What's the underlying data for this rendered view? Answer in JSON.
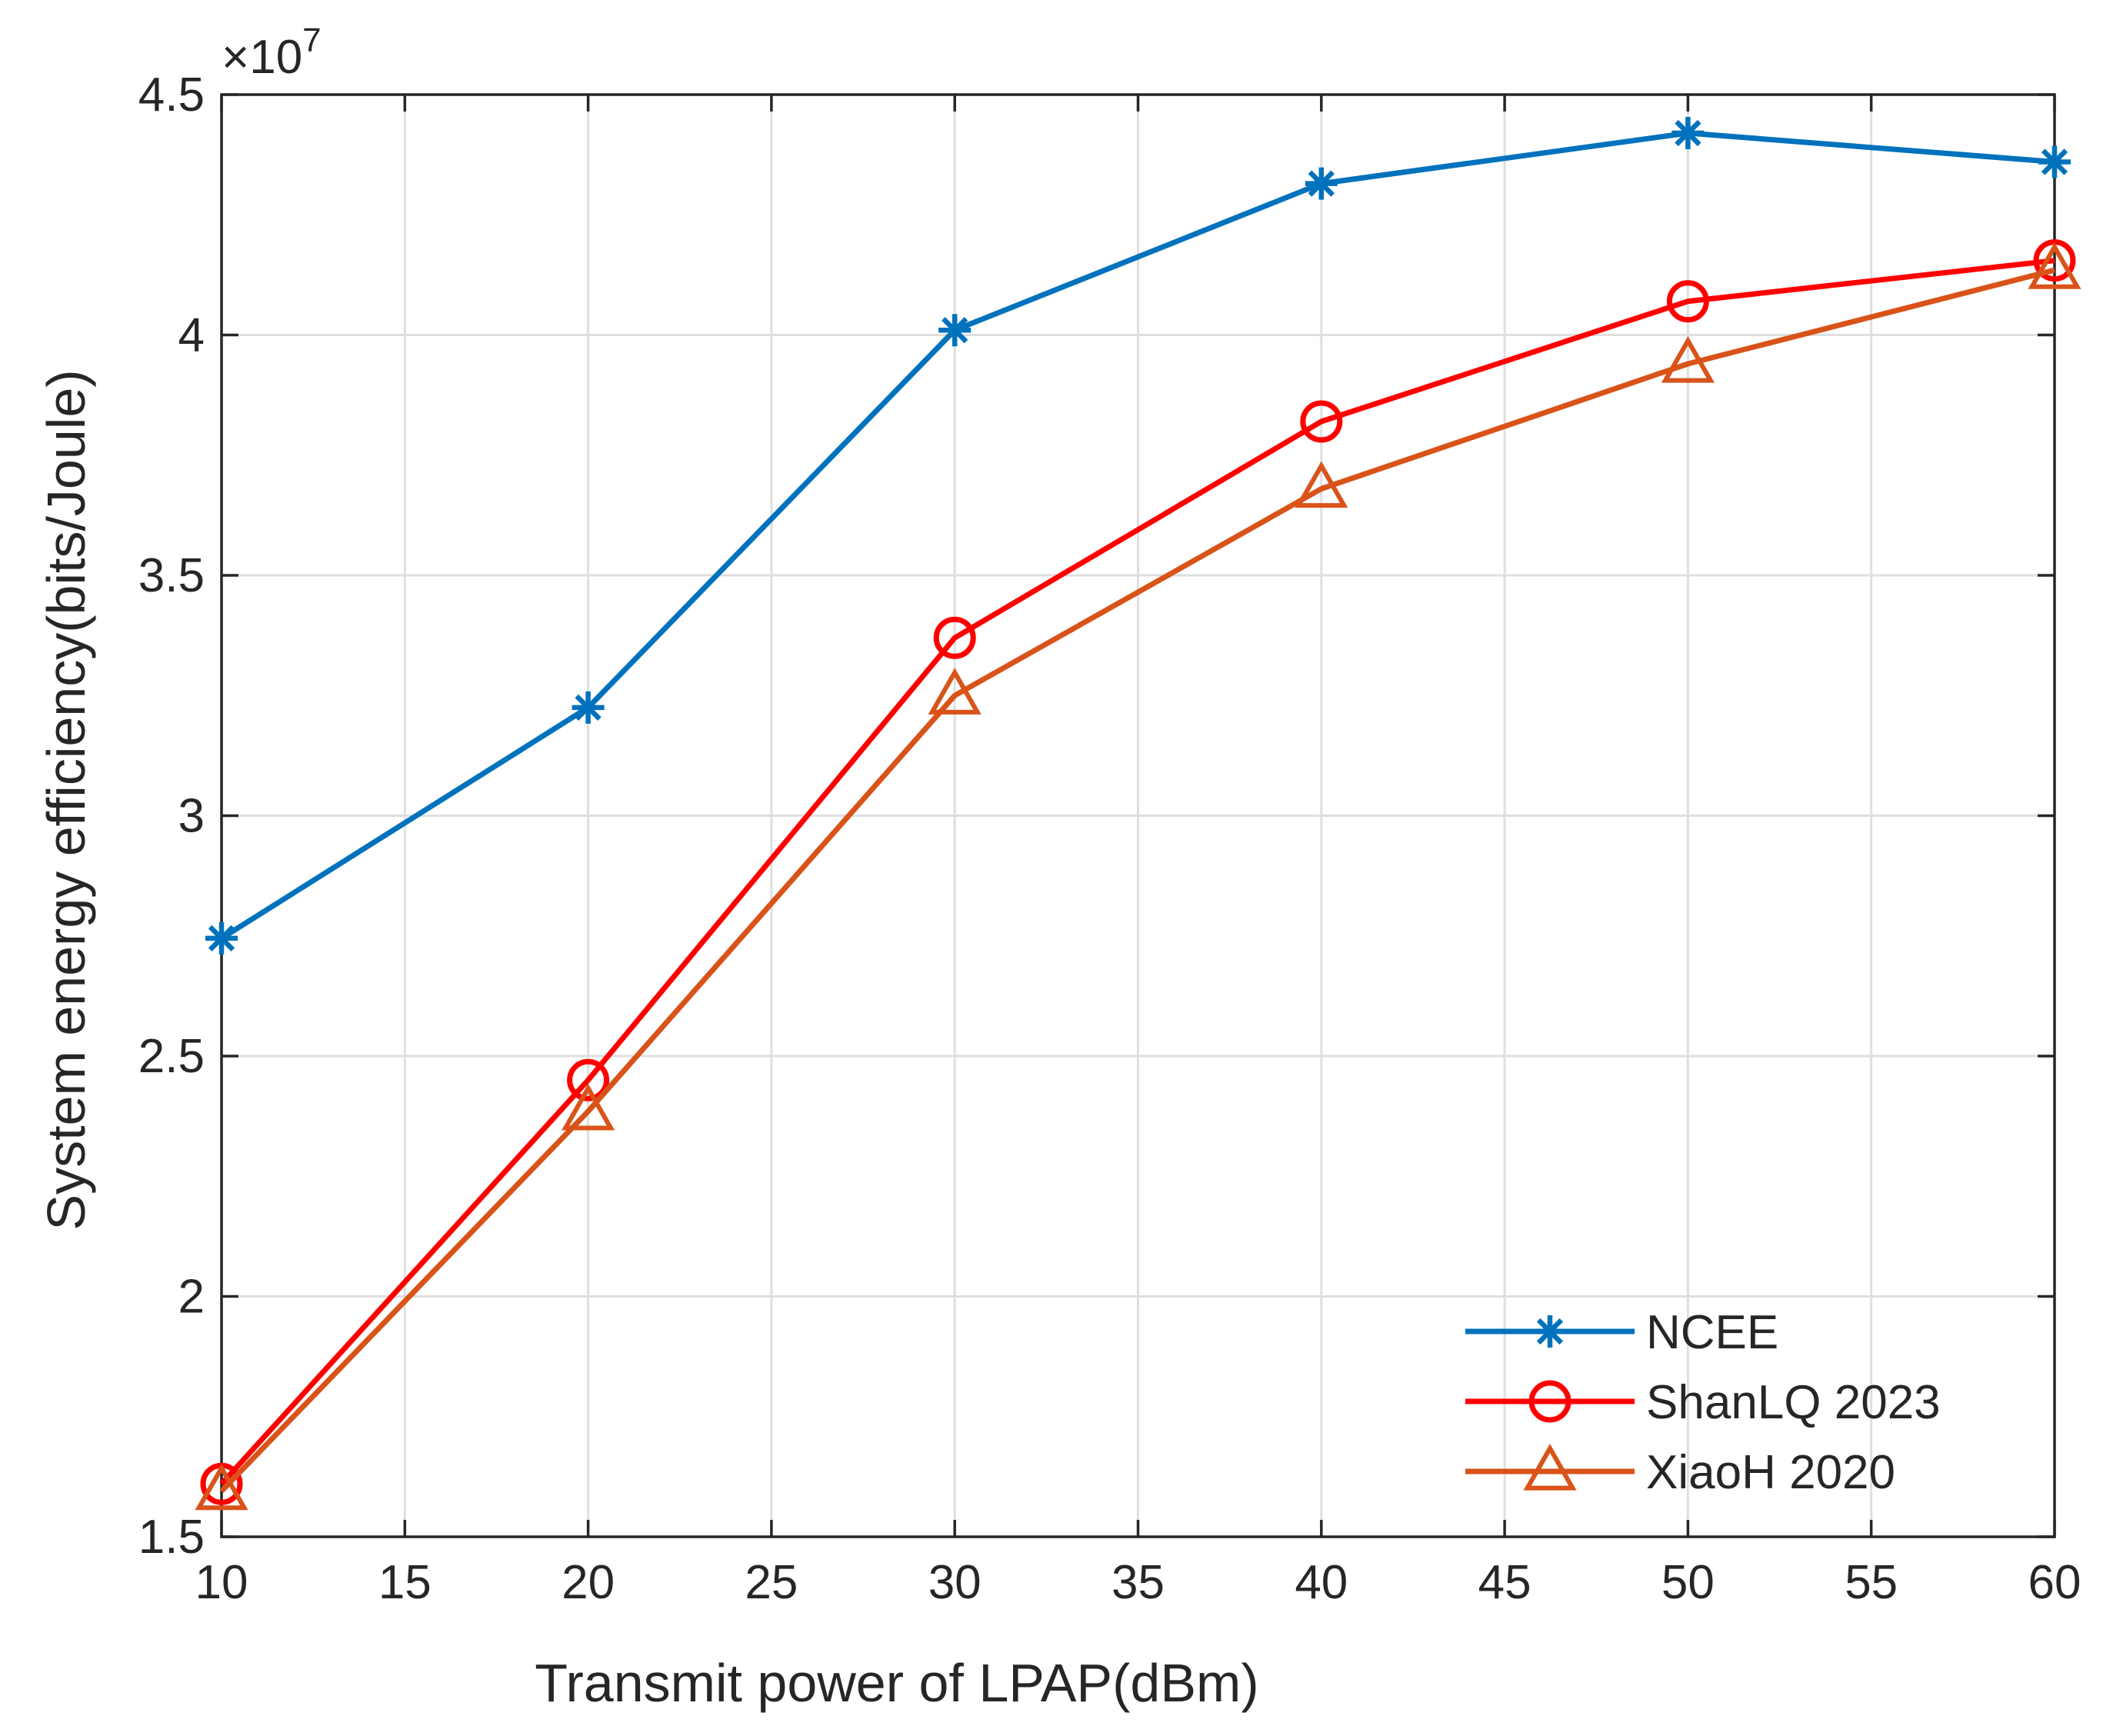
{
  "chart_data": {
    "type": "line",
    "title": "",
    "xlabel": "Transmit power of LPAP(dBm)",
    "ylabel": "System energy efficiency(bits/Joule)",
    "y_exponent_label": "×10",
    "y_exponent_power": "7",
    "xlim": [
      10,
      60
    ],
    "ylim": [
      1.5,
      4.5
    ],
    "xticks": [
      10,
      15,
      20,
      25,
      30,
      35,
      40,
      45,
      50,
      55,
      60
    ],
    "xtick_labels": [
      "10",
      "15",
      "20",
      "25",
      "30",
      "35",
      "40",
      "45",
      "50",
      "55",
      "60"
    ],
    "yticks": [
      1.5,
      2,
      2.5,
      3,
      3.5,
      4,
      4.5
    ],
    "ytick_labels": [
      "1.5",
      "2",
      "2.5",
      "3",
      "3.5",
      "4",
      "4.5"
    ],
    "grid": true,
    "legend_position": "bottom-right",
    "x": [
      10,
      20,
      30,
      40,
      50,
      60
    ],
    "series": [
      {
        "name": "NCEE",
        "color": "#0072BD",
        "marker": "asterisk",
        "values": [
          2.745,
          3.225,
          4.01,
          4.315,
          4.42,
          4.36
        ]
      },
      {
        "name": "ShanLQ 2023",
        "color": "#FF0000",
        "marker": "circle",
        "values": [
          1.61,
          2.45,
          3.37,
          3.82,
          4.07,
          4.155
        ]
      },
      {
        "name": "XiaoH 2020",
        "color": "#D95319",
        "marker": "triangle",
        "values": [
          1.595,
          2.385,
          3.25,
          3.68,
          3.94,
          4.135
        ]
      }
    ]
  }
}
